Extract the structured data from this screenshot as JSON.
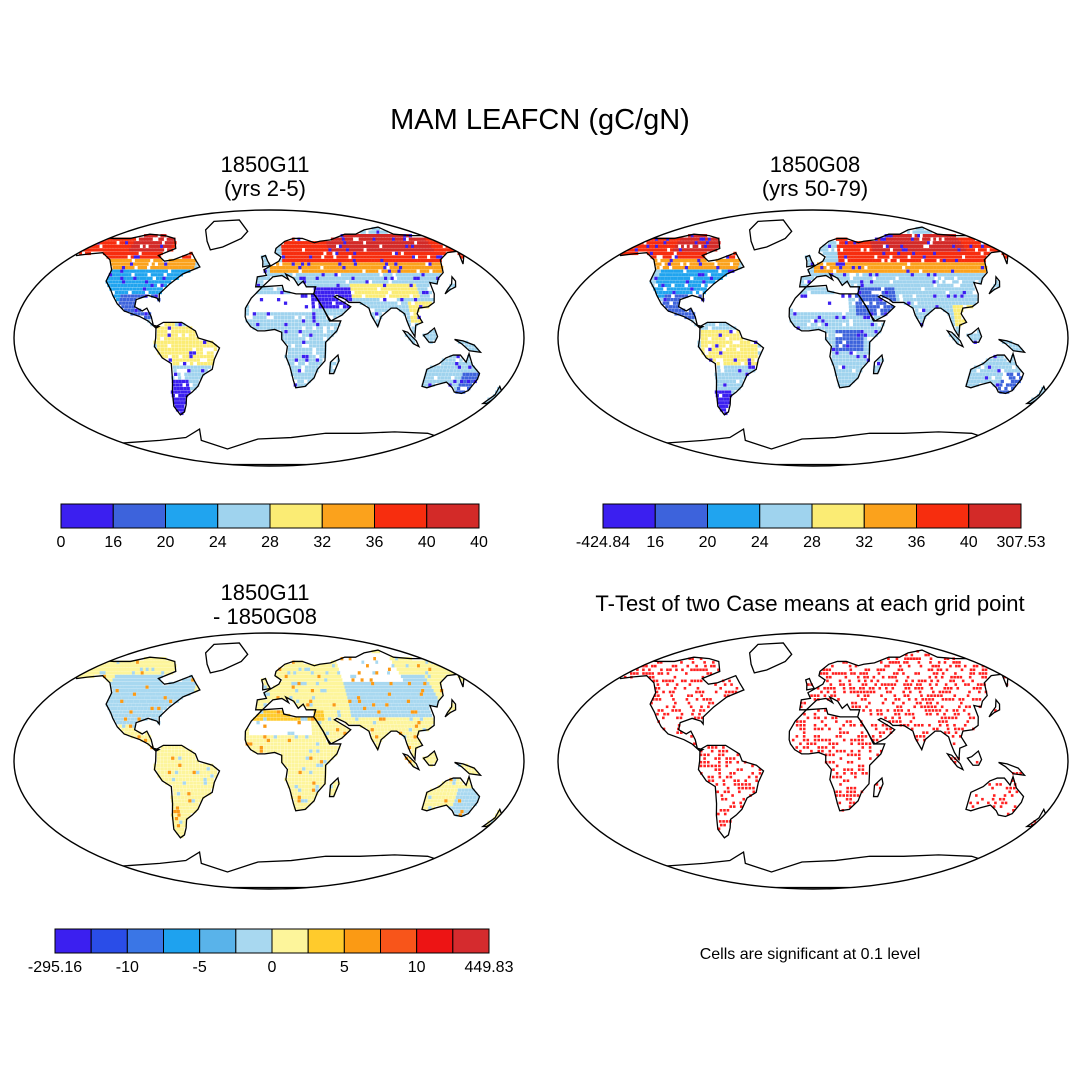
{
  "title": "MAM LEAFCN (gC/gN)",
  "panels": [
    {
      "line1": "1850G11",
      "line2": "(yrs 2-5)"
    },
    {
      "line1": "1850G08",
      "line2": "(yrs 50-79)"
    },
    {
      "line1": "1850G11",
      "line2": "- 1850G08"
    },
    {
      "line1": "T-Test of two Case means at each grid point",
      "line2": ""
    }
  ],
  "colorbars": [
    {
      "labels": [
        "0",
        "16",
        "20",
        "24",
        "28",
        "32",
        "36",
        "40",
        "40"
      ],
      "colors": [
        "#3b1ff0",
        "#3d63dc",
        "#20a4ef",
        "#9fd3ee",
        "#fbec74",
        "#fba21c",
        "#f72d0e",
        "#d32a28"
      ]
    },
    {
      "labels": [
        "-424.84",
        "16",
        "20",
        "24",
        "28",
        "32",
        "36",
        "40",
        "307.53"
      ],
      "colors": [
        "#3b1ff0",
        "#3d63dc",
        "#20a4ef",
        "#9fd3ee",
        "#fbec74",
        "#fba21c",
        "#f72d0e",
        "#d32a28"
      ]
    },
    {
      "labels": [
        "-295.16",
        "-10",
        "-5",
        "0",
        "5",
        "10",
        "449.83"
      ],
      "colors": [
        "#3b1ff0",
        "#2a4de8",
        "#3a76e6",
        "#1ea2ef",
        "#59b3ea",
        "#a8d8f0",
        "#fdf59b",
        "#ffcb2c",
        "#fb9a14",
        "#f8551a",
        "#ed1414",
        "#d52b2e"
      ]
    }
  ],
  "ttest_note": "Cells are significant at 0.1 level",
  "chart_data": [
    {
      "type": "heatmap",
      "title": "1850G11 (yrs 2-5)",
      "variable": "MAM LEAFCN",
      "units": "gC/gN",
      "levels": [
        16,
        20,
        24,
        28,
        32,
        36,
        40
      ],
      "min_label": "0",
      "max_label": "40"
    },
    {
      "type": "heatmap",
      "title": "1850G08 (yrs 50-79)",
      "variable": "MAM LEAFCN",
      "units": "gC/gN",
      "levels": [
        16,
        20,
        24,
        28,
        32,
        36,
        40
      ],
      "min_label": "-424.84",
      "max_label": "307.53"
    },
    {
      "type": "heatmap",
      "title": "1850G11 - 1850G08",
      "variable": "MAM LEAFCN difference",
      "units": "gC/gN",
      "tick_labels": [
        -10,
        -5,
        0,
        5,
        10
      ],
      "min_label": "-295.16",
      "max_label": "449.83"
    },
    {
      "type": "heatmap",
      "title": "T-Test of two Case means at each grid point",
      "significance_level": 0.1
    }
  ]
}
